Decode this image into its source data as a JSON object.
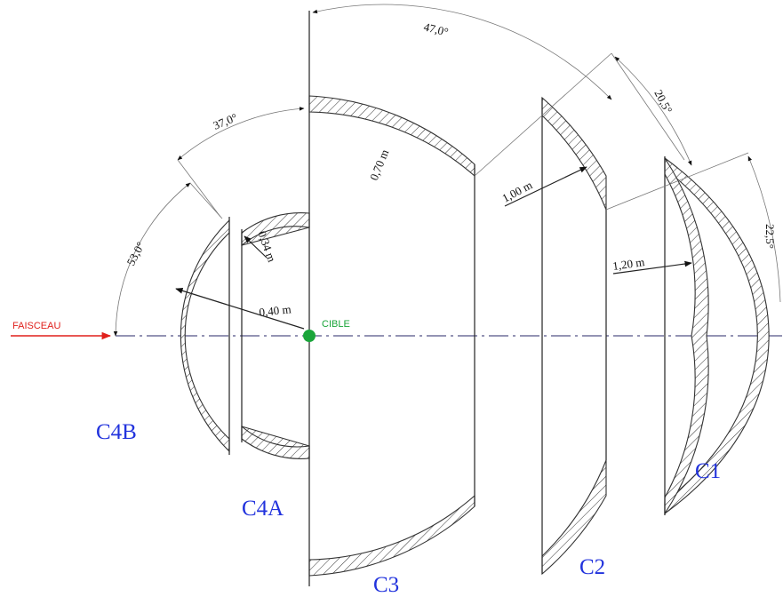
{
  "labels": {
    "beam": "FAISCEAU",
    "target": "CIBLE",
    "c4b": "C4B",
    "c4a": "C4A",
    "c3": "C3",
    "c2": "C2",
    "c1": "C1"
  },
  "angles": {
    "a53": "53,0°",
    "a37": "37,0°",
    "a47": "47,0°",
    "a20": "20,5°",
    "a22": "22,5°"
  },
  "radii": {
    "r040": "0,40 m",
    "r034": "0,34 m",
    "r070": "0,70 m",
    "r100": "1,00 m",
    "r120": "1,20 m"
  },
  "colors": {
    "beam": "#e0201c",
    "target": "#1aa53a",
    "detector_label": "#2233dd",
    "axis": "#2a2a6a"
  }
}
